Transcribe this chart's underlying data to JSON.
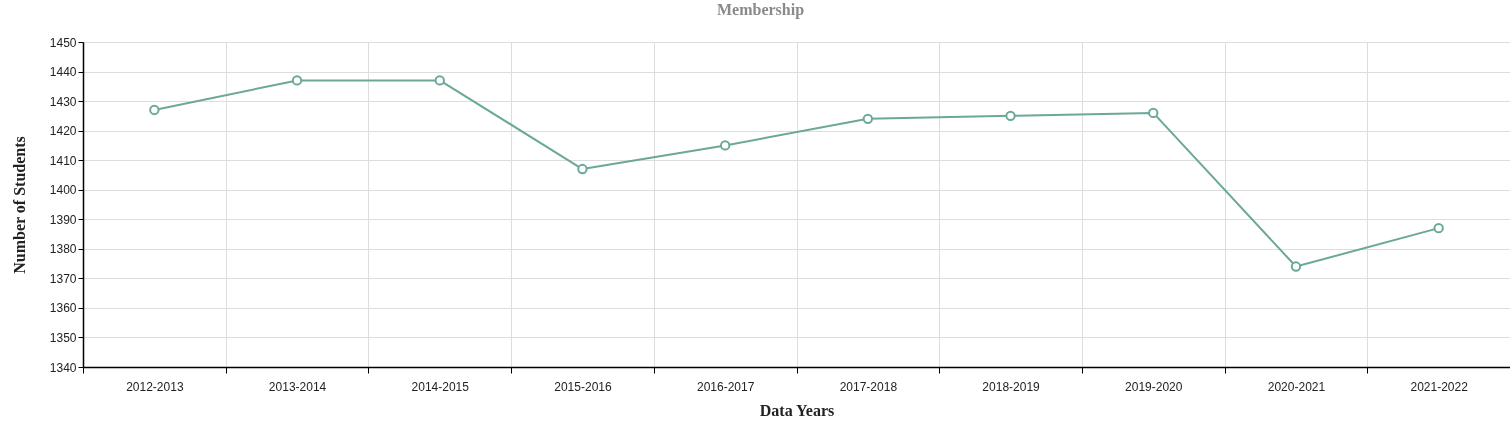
{
  "chart_data": {
    "type": "line",
    "title": "Membership",
    "xlabel": "Data Years",
    "ylabel": "Number of Students",
    "categories": [
      "2012-2013",
      "2013-2014",
      "2014-2015",
      "2015-2016",
      "2016-2017",
      "2017-2018",
      "2018-2019",
      "2019-2020",
      "2020-2021",
      "2021-2022"
    ],
    "series": [
      {
        "color": "#6aa899",
        "values": [
          1427,
          1437,
          1437,
          1407,
          1415,
          1424,
          1425,
          1426,
          1374,
          1387
        ]
      }
    ],
    "ylim": [
      1340,
      1450
    ],
    "yticks": [
      1340,
      1350,
      1360,
      1370,
      1380,
      1390,
      1400,
      1410,
      1420,
      1430,
      1440,
      1450
    ],
    "grid": true,
    "marker": "circle",
    "line_style": "solid"
  }
}
